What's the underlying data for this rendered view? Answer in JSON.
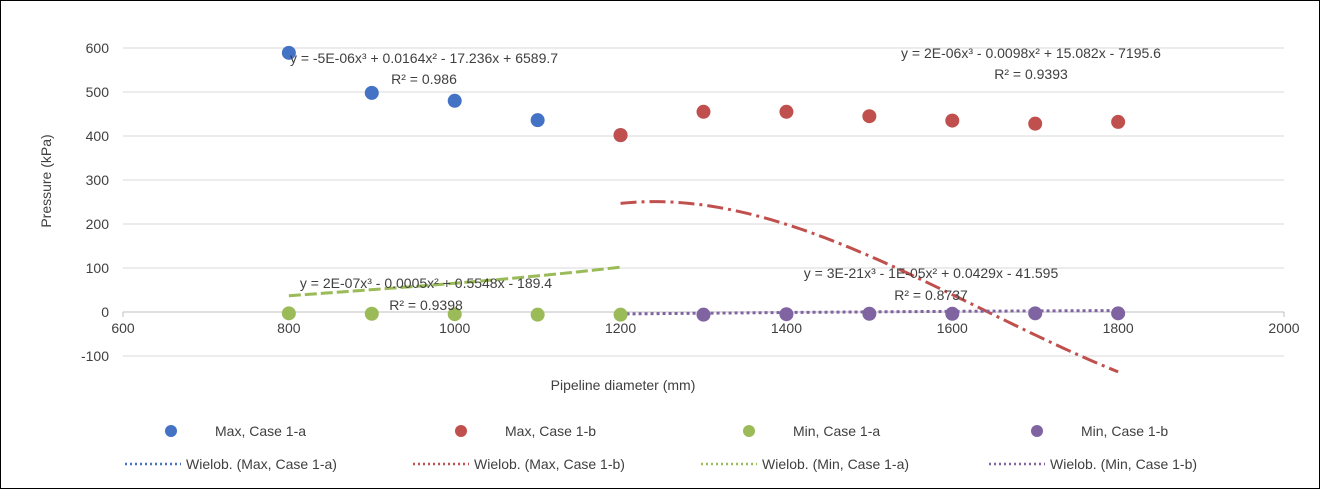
{
  "chart_data": {
    "type": "scatter",
    "xlabel": "Pipeline diameter (mm)",
    "ylabel": "Pressure (kPa)",
    "xlim": [
      600,
      2000
    ],
    "ylim": [
      -100,
      600
    ],
    "x_ticks": [
      600,
      800,
      1000,
      1200,
      1400,
      1600,
      1800,
      2000
    ],
    "y_ticks": [
      -100,
      0,
      100,
      200,
      300,
      400,
      500,
      600
    ],
    "grid": "horizontal",
    "legend_position": "bottom",
    "series": [
      {
        "name": "Max, Case 1-a",
        "color": "#4472C4",
        "points": [
          [
            800,
            589
          ],
          [
            900,
            498
          ],
          [
            1000,
            480
          ],
          [
            1100,
            436
          ],
          [
            1200,
            402
          ]
        ]
      },
      {
        "name": "Max, Case 1-b",
        "color": "#C0504D",
        "points": [
          [
            1200,
            402
          ],
          [
            1300,
            455
          ],
          [
            1400,
            455
          ],
          [
            1500,
            445
          ],
          [
            1600,
            435
          ],
          [
            1700,
            428
          ],
          [
            1800,
            432
          ]
        ]
      },
      {
        "name": "Min, Case 1-a",
        "color": "#9BBB59",
        "points": [
          [
            800,
            -3
          ],
          [
            900,
            -4
          ],
          [
            1000,
            -5
          ],
          [
            1100,
            -6
          ],
          [
            1200,
            -6
          ]
        ]
      },
      {
        "name": "Min, Case 1-b",
        "color": "#8064A2",
        "points": [
          [
            1300,
            -6
          ],
          [
            1400,
            -5
          ],
          [
            1500,
            -4
          ],
          [
            1600,
            -4
          ],
          [
            1700,
            -3
          ],
          [
            1800,
            -3
          ]
        ]
      }
    ],
    "trendlines": [
      {
        "name": "Wielob. (Max, Case 1-a)",
        "color": "#4472C4",
        "coefficients": [
          -5e-06,
          0.0164,
          -17.236,
          6589.7
        ],
        "x_range": [
          800,
          1200
        ],
        "equation": "y = -5E-06x³ + 0.0164x² - 17.236x + 6589.7",
        "r2": "R² = 0.986"
      },
      {
        "name": "Wielob. (Max, Case 1-b)",
        "color": "#C0504D",
        "coefficients": [
          2e-06,
          -0.0098,
          15.082,
          -7195.6
        ],
        "x_range": [
          1200,
          1800
        ],
        "equation": "y = 2E-06x³ - 0.0098x² + 15.082x - 7195.6",
        "r2": "R² = 0.9393"
      },
      {
        "name": "Wielob. (Min, Case 1-a)",
        "color": "#9BBB59",
        "coefficients": [
          2e-07,
          -0.0005,
          0.5548,
          -189.4
        ],
        "x_range": [
          800,
          1200
        ],
        "equation": "y = 2E-07x³ - 0.0005x² + 0.5548x - 189.4",
        "r2": "R² = 0.9398"
      },
      {
        "name": "Wielob. (Min, Case 1-b)",
        "color": "#8064A2",
        "coefficients": [
          3e-21,
          -1e-05,
          0.0429,
          -41.595
        ],
        "x_range": [
          1200,
          1800
        ],
        "equation": "y = 3E-21x³ - 1E-05x² + 0.0429x - 41.595",
        "r2": "R² = 0.8737"
      }
    ]
  }
}
